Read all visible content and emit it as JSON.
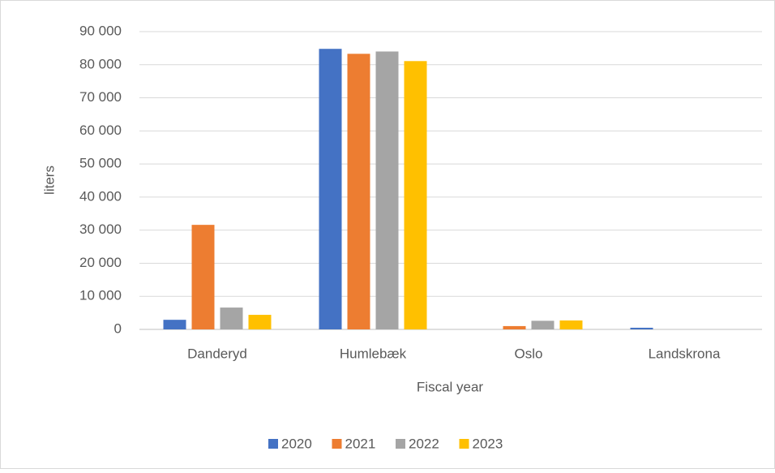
{
  "chart_data": {
    "type": "bar",
    "categories": [
      "Danderyd",
      "Humlebæk",
      "Oslo",
      "Landskrona"
    ],
    "series": [
      {
        "name": "2020",
        "color": "#4472c4",
        "values": [
          2900,
          84800,
          0,
          500
        ]
      },
      {
        "name": "2021",
        "color": "#ed7d31",
        "values": [
          31600,
          83300,
          1000,
          0
        ]
      },
      {
        "name": "2022",
        "color": "#a5a5a5",
        "values": [
          6600,
          84000,
          2600,
          0
        ]
      },
      {
        "name": "2023",
        "color": "#ffc000",
        "values": [
          4400,
          81100,
          2700,
          0
        ]
      }
    ],
    "ylabel": "liters",
    "xlabel": "Fiscal year",
    "ylim": [
      0,
      90000
    ],
    "yticks": [
      0,
      {
        "value": 10000,
        "label": "10 000"
      },
      {
        "value": 20000,
        "label": "20 000"
      },
      {
        "value": 30000,
        "label": "30 000"
      },
      {
        "value": 40000,
        "label": "40 000"
      },
      {
        "value": 50000,
        "label": "50 000"
      },
      {
        "value": 60000,
        "label": "60 000"
      },
      {
        "value": 70000,
        "label": "70 000"
      },
      {
        "value": 80000,
        "label": "80 000"
      },
      {
        "value": 90000,
        "label": "90 000"
      }
    ],
    "grid": true,
    "legend": "bottom"
  }
}
